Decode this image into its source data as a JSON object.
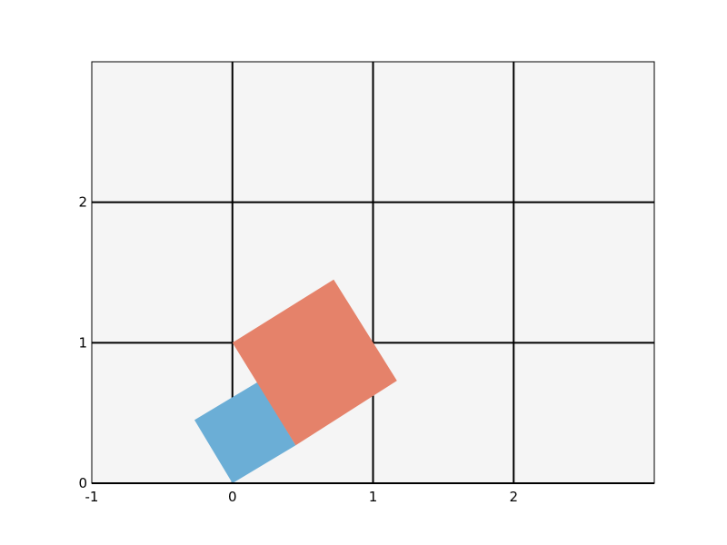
{
  "chart_data": {
    "type": "polygon",
    "xlim": [
      -1,
      3
    ],
    "ylim": [
      0,
      3
    ],
    "xticks": [
      -1,
      0,
      1,
      2
    ],
    "yticks": [
      0,
      1,
      2
    ],
    "xtick_labels": [
      "-1",
      "0",
      "1",
      "2"
    ],
    "ytick_labels": [
      "0",
      "1",
      "2"
    ],
    "grid": true,
    "background_color": "#f5f5f5",
    "grid_color": "#000000",
    "shapes": [
      {
        "color": "#6baed6",
        "points": [
          [
            0.0,
            0.0
          ],
          [
            -0.27,
            0.45
          ],
          [
            0.18,
            0.72
          ],
          [
            0.45,
            0.27
          ]
        ]
      },
      {
        "color": "#e5826a",
        "points": [
          [
            0.0,
            1.0
          ],
          [
            0.72,
            1.45
          ],
          [
            1.17,
            0.73
          ],
          [
            0.45,
            0.27
          ]
        ]
      }
    ]
  }
}
